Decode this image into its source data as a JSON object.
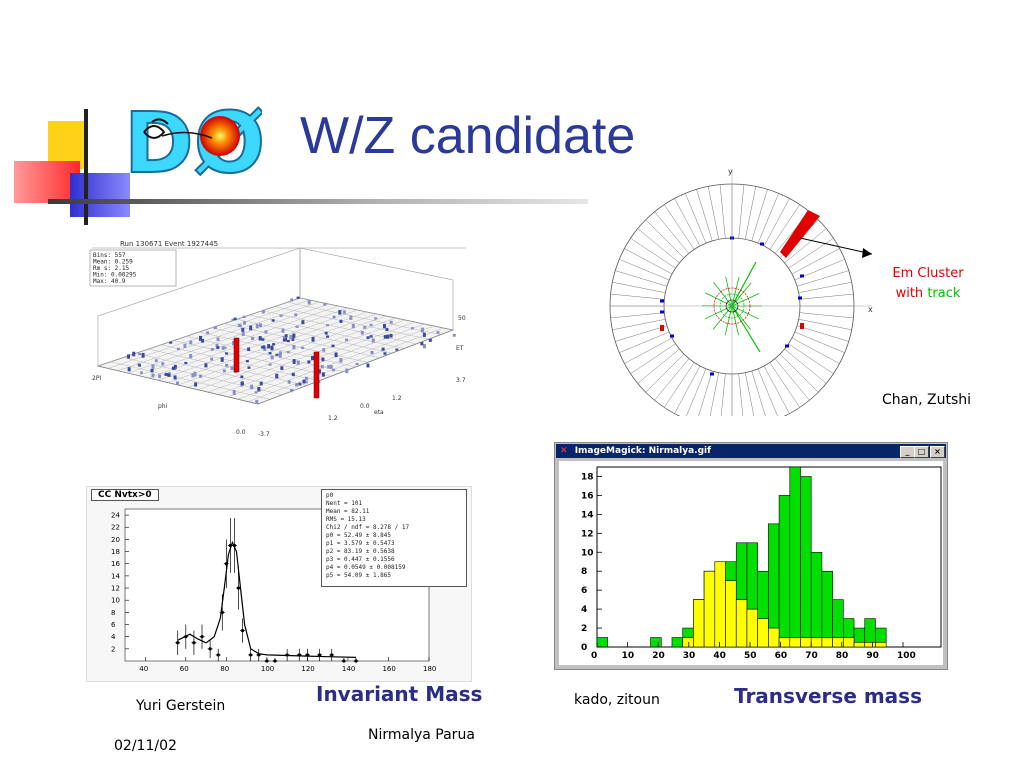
{
  "slide": {
    "title": "W/Z candidate",
    "logo_text": "DØ",
    "date": "02/11/02",
    "presenter": "Nirmalya Parua"
  },
  "lego_plot": {
    "header": "Run 130671 Event 1927445",
    "stats": [
      "Bins: 557",
      "Mean: 0.259",
      "Rm s: 2.15",
      "Min: 0.00295",
      "Max: 40.9"
    ],
    "axis_labels": {
      "et": "ET",
      "et_max": "50",
      "phi": "phi",
      "phi_max": "2PI",
      "eta": "eta",
      "eta_max": "3.7",
      "eta_min": "-3.7",
      "eta_mid": "0.0",
      "phi_min": "0.0",
      "phi_tick": "1.2",
      "eta_tick": "1.2",
      "eta_tick2": "1.2"
    }
  },
  "event_display": {
    "axis_y": "y",
    "axis_x": "x",
    "annotation_line1": "Em Cluster",
    "annotation_with": "with",
    "annotation_track": "track",
    "credit": "Chan, Zutshi",
    "colors": {
      "em_cluster": "#e00000",
      "track": "#00c000",
      "muon": "#0000cc"
    }
  },
  "invariant_mass": {
    "tab_label": "CC Nvtx>0",
    "fit_params": [
      "p0",
      "Nent  = 101",
      "Mean  = 82.11",
      "RMS   = 15.13",
      "Chi2 / ndf = 8.278 / 17",
      "p0   = 52.49 ± 8.845",
      "p1   = 3.579 ± 0.5473",
      "p2   = 83.19 ± 0.5638",
      "p3   = 0.447 ± 0.1556",
      "p4   = 0.0549 ± 0.008159",
      "p5   = 54.09 ± 1.865"
    ],
    "label": "Invariant Mass",
    "credit": "Yuri Gerstein"
  },
  "transverse_mass": {
    "window_title": "ImageMagick: Nirmalya.gif",
    "window_buttons": [
      "_",
      "□",
      "×"
    ],
    "label": "Transverse mass",
    "credit": "kado, zitoun",
    "colors": {
      "green": "#00e000",
      "yellow": "#ffff00"
    }
  },
  "chart_data": [
    {
      "type": "scatter",
      "x_ticks": [
        "40",
        "60",
        "80",
        "100",
        "120",
        "140",
        "160",
        "180"
      ],
      "y_ticks": [
        "2",
        "4",
        "6",
        "8",
        "10",
        "12",
        "14",
        "16",
        "18",
        "20",
        "22",
        "24"
      ],
      "xlim": [
        30,
        180
      ],
      "ylim": [
        0,
        25
      ],
      "x": [
        56,
        60,
        64,
        68,
        72,
        76,
        78,
        80,
        82,
        84,
        86,
        88,
        92,
        96,
        100,
        104,
        110,
        116,
        120,
        126,
        132,
        138,
        144
      ],
      "y": [
        3,
        4,
        3,
        4,
        2,
        1,
        8,
        16,
        19,
        19,
        12,
        5,
        1,
        1,
        0,
        0,
        1,
        1,
        1,
        1,
        1,
        0,
        0
      ],
      "errors": [
        2,
        2,
        2,
        2,
        1.5,
        1,
        3,
        4,
        4.5,
        4.5,
        3.5,
        2,
        1,
        1,
        0.5,
        0.5,
        1,
        1,
        1,
        1,
        1,
        0.5,
        0.5
      ],
      "fit_curve_x": [
        56,
        62,
        66,
        70,
        74,
        77,
        79,
        81,
        83,
        85,
        87,
        89,
        92,
        96,
        100,
        110,
        120,
        130,
        144
      ],
      "fit_curve_y": [
        3.4,
        4.4,
        3.6,
        3.0,
        4.0,
        7,
        12,
        17.5,
        19.5,
        18,
        12,
        6,
        2,
        1.2,
        1.0,
        0.9,
        0.8,
        0.7,
        0.6
      ]
    },
    {
      "type": "bar",
      "x_ticks": [
        "0",
        "10",
        "20",
        "30",
        "40",
        "50",
        "60",
        "70",
        "80",
        "90",
        "100"
      ],
      "y_ticks": [
        "0",
        "2",
        "4",
        "6",
        "8",
        "10",
        "12",
        "14",
        "16",
        "18"
      ],
      "xlim": [
        0,
        100
      ],
      "ylim": [
        0,
        19
      ],
      "bin_width": 3.5,
      "bin_starts": [
        0,
        3.5,
        7,
        10.5,
        14,
        17.5,
        21,
        24.5,
        28,
        31.5,
        35,
        38.5,
        42,
        45.5,
        49,
        52.5,
        56,
        59.5,
        63,
        66.5,
        70,
        73.5,
        77,
        80.5,
        84,
        87.5,
        91,
        94.5
      ],
      "series": [
        {
          "values": [
            1,
            0,
            0,
            0,
            0,
            1,
            0,
            1,
            2,
            5,
            8,
            7,
            9,
            11,
            11,
            8,
            13,
            16,
            19,
            18,
            10,
            8,
            5,
            3,
            2,
            3,
            2,
            0
          ]
        },
        {
          "values": [
            0,
            0,
            0,
            0,
            0,
            0,
            0,
            0,
            1,
            5,
            8,
            9,
            7,
            5,
            4,
            3,
            2,
            1,
            1,
            1,
            1,
            1,
            1,
            1,
            0.5,
            0.5,
            0.5,
            0
          ]
        }
      ]
    }
  ]
}
